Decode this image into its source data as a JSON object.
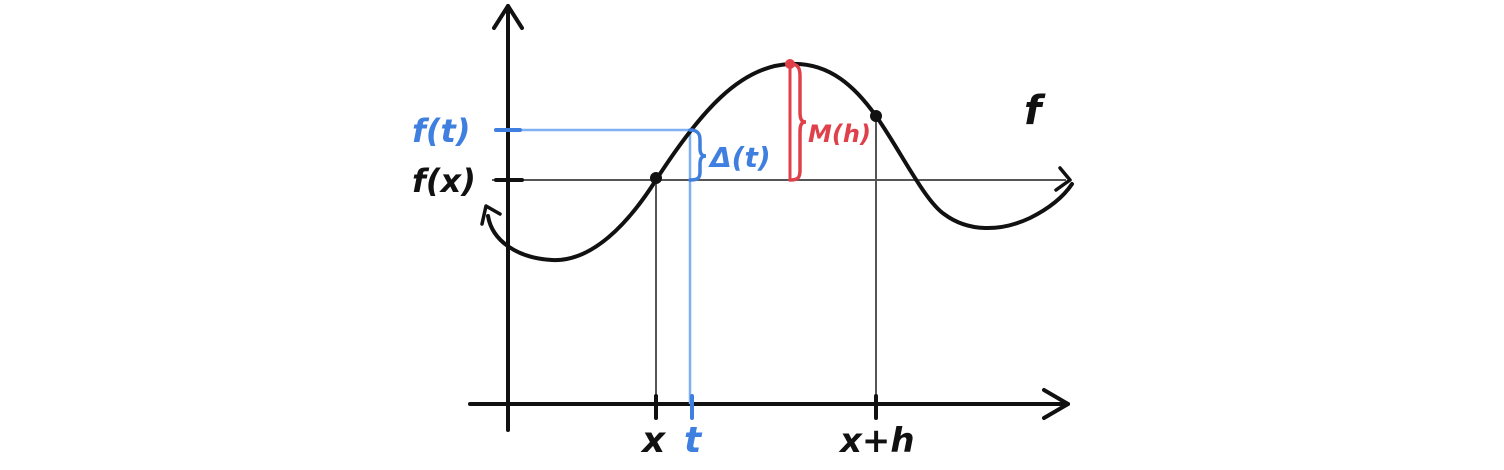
{
  "labels": {
    "f_of_t": "f(t)",
    "f_of_x": "f(x)",
    "delta_t": "Δ(t)",
    "m_h": "M(h)",
    "f": "f",
    "x": "x",
    "t": "t",
    "x_plus_h": "x+h"
  },
  "colors": {
    "ink": "#111111",
    "blue": "#3f7fe0",
    "red": "#e0404a",
    "guide": "#555555"
  }
}
